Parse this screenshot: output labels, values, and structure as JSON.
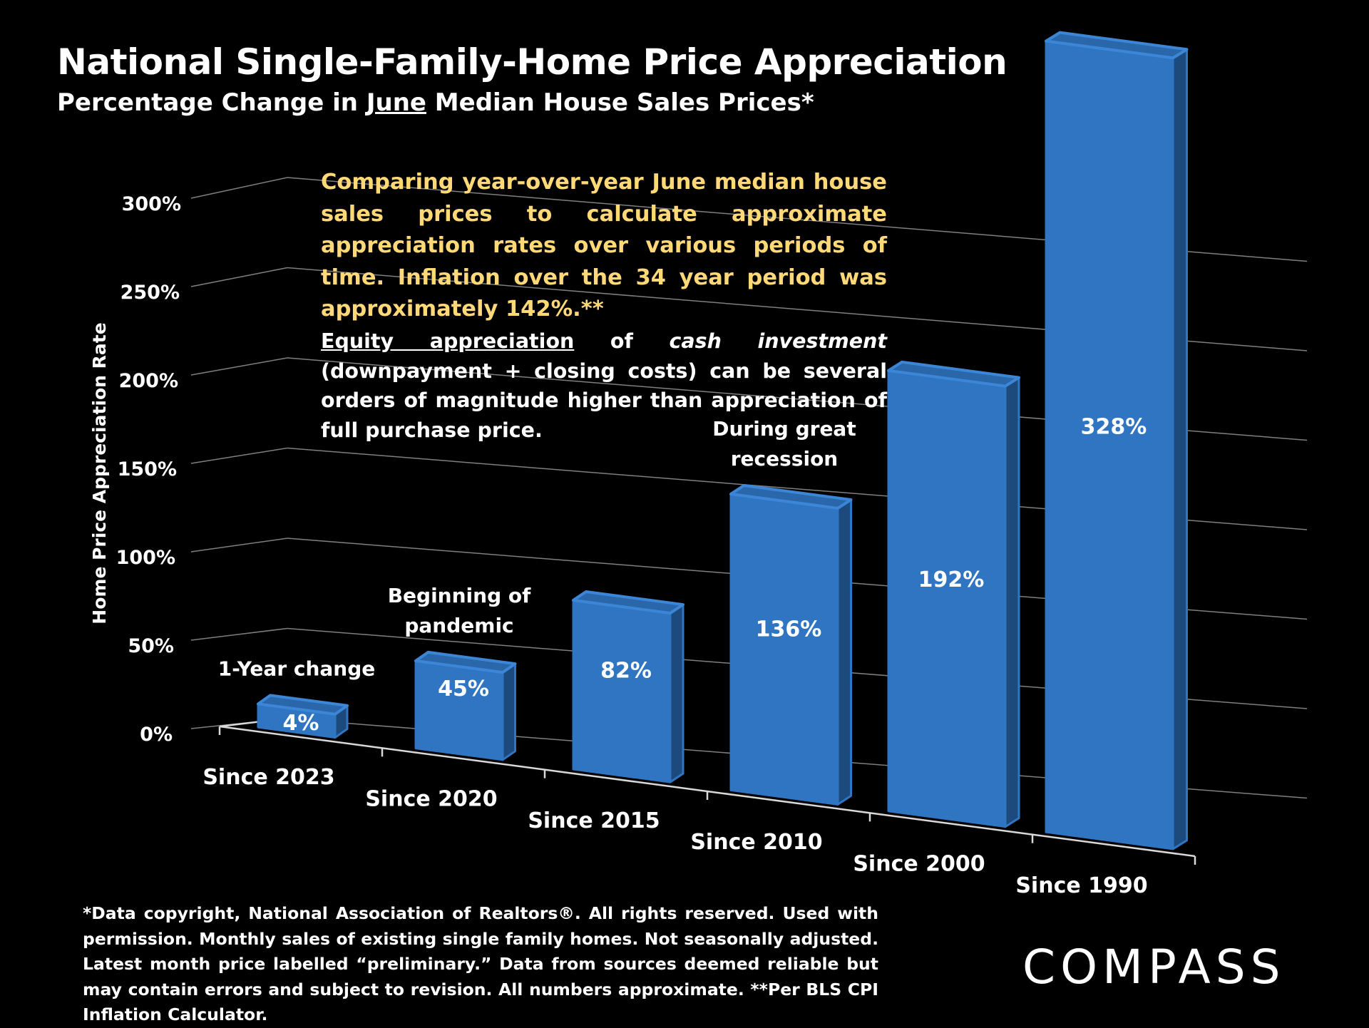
{
  "header": {
    "title": "National Single-Family-Home Price Appreciation",
    "subtitle_pre": "Percentage Change in ",
    "subtitle_month": "June",
    "subtitle_post": " Median House Sales Prices*"
  },
  "notes": {
    "note1": "Comparing year-over-year June median house sales prices to calculate approximate appreciation rates over various periods of time. Inflation over the 34 year period was approximately 142%.**",
    "note2_underlined": "Equity appreciation",
    "note2_of": " of ",
    "note2_italic": "cash investment",
    "note2_rest": " (downpayment + closing costs) can be several orders of magnitude higher than appreciation of full purchase price."
  },
  "footnote": "*Data copyright, National Association of Realtors®. All rights reserved. Used with permission. Monthly sales of existing single family homes. Not seasonally adjusted. Latest month price labelled “preliminary.” Data from sources deemed reliable but may contain errors and subject to revision. All numbers  approximate. **Per BLS CPI Inflation Calculator.",
  "logo": {
    "text": "COMPASS"
  },
  "colors": {
    "background": "#000000",
    "bar_front": "#2f75c2",
    "bar_side": "#1d4a7d",
    "note_highlight": "#ffd978",
    "axis": "#d9d9d9",
    "grid": "#7f7f7f"
  },
  "chart_data": {
    "type": "bar",
    "ylabel": "Home Price Appreciation Rate",
    "ylim": [
      0,
      300
    ],
    "yticks": [
      0,
      50,
      100,
      150,
      200,
      250,
      300
    ],
    "ytick_labels": [
      "0%",
      "50%",
      "100%",
      "150%",
      "200%",
      "250%",
      "300%"
    ],
    "categories": [
      "Since 2023",
      "Since 2020",
      "Since 2015",
      "Since 2010",
      "Since 2000",
      "Since 1990"
    ],
    "values": [
      4,
      45,
      82,
      136,
      192,
      328
    ],
    "value_labels": [
      "4%",
      "45%",
      "82%",
      "136%",
      "192%",
      "328%"
    ],
    "annotations": [
      {
        "category": "Since 2023",
        "lines": [
          "1-Year change"
        ]
      },
      {
        "category": "Since 2020",
        "lines": [
          "Beginning of",
          "pandemic"
        ]
      },
      {
        "category": "Since 2010",
        "lines": [
          "During great",
          "recession"
        ]
      }
    ],
    "grid": true
  }
}
